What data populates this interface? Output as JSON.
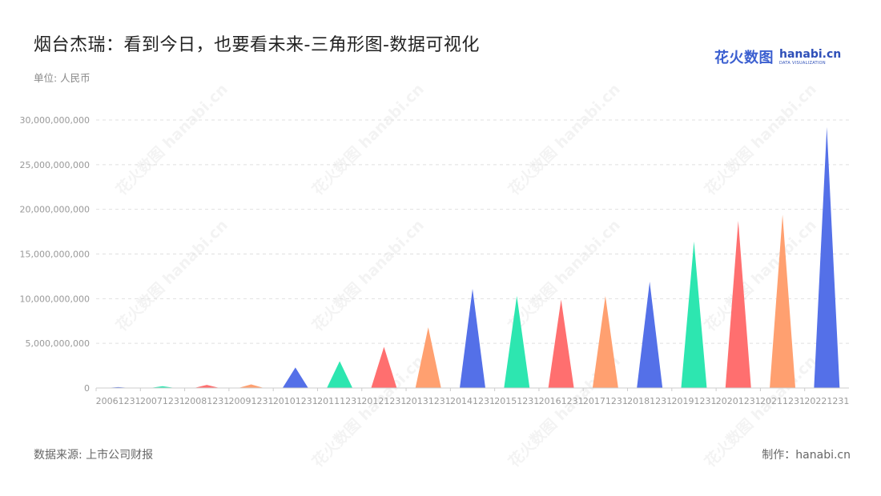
{
  "title": "烟台杰瑞：看到今日，也要看未来-三角形图-数据可视化",
  "subtitle": "单位: 人民币",
  "logo": {
    "cn": "花火数图",
    "en": "hanabi.cn",
    "en_sub": "DATA VISUALIZATION"
  },
  "watermark_text": "花火数图 hanabi.cn",
  "footer": {
    "source": "数据来源: 上市公司财报",
    "credit": "制作：hanabi.cn"
  },
  "colors": {
    "palette": [
      "#5470e8",
      "#2de6b0",
      "#ff6f6f",
      "#ffa070"
    ],
    "grid": "#e0e0e0",
    "axis": "#cccccc"
  },
  "chart_data": {
    "type": "bar",
    "shape": "triangle",
    "categories": [
      "20061231",
      "20071231",
      "20081231",
      "20091231",
      "20101231",
      "20111231",
      "20121231",
      "20131231",
      "20141231",
      "20151231",
      "20161231",
      "20171231",
      "20181231",
      "20191231",
      "20201231",
      "20211231",
      "20221231"
    ],
    "values": [
      100000000,
      200000000,
      350000000,
      400000000,
      2300000000,
      3000000000,
      4600000000,
      6800000000,
      11100000000,
      10300000000,
      9900000000,
      10300000000,
      11900000000,
      16400000000,
      18700000000,
      19400000000,
      29200000000
    ],
    "yticks": [
      "0",
      "5,000,000,000",
      "10,000,000,000",
      "15,000,000,000",
      "20,000,000,000",
      "25,000,000,000",
      "30,000,000,000"
    ],
    "ylim": [
      0,
      30000000000
    ],
    "grid": true,
    "legend": "none"
  }
}
